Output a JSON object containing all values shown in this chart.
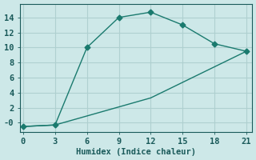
{
  "xlabel": "Humidex (Indice chaleur)",
  "bg_color": "#cde8e8",
  "line_color": "#1a7a6e",
  "grid_color": "#afd0d0",
  "line1_x": [
    0,
    3,
    6,
    9,
    12,
    15,
    18,
    21
  ],
  "line1_y": [
    -0.5,
    -0.3,
    10,
    14,
    14.7,
    13,
    10.5,
    9.5
  ],
  "line2_x": [
    0,
    3,
    12,
    21
  ],
  "line2_y": [
    -0.5,
    -0.3,
    3.3,
    9.5
  ],
  "xlim": [
    -0.3,
    21.5
  ],
  "ylim": [
    -1.2,
    15.8
  ],
  "xticks": [
    0,
    3,
    6,
    9,
    12,
    15,
    18,
    21
  ],
  "yticks": [
    0,
    2,
    4,
    6,
    8,
    10,
    12,
    14
  ],
  "ytick_labels": [
    "-0",
    "2",
    "4",
    "6",
    "8",
    "10",
    "12",
    "14"
  ],
  "font_color": "#1a5a5a",
  "tick_fontsize": 7.5,
  "xlabel_fontsize": 7.5
}
